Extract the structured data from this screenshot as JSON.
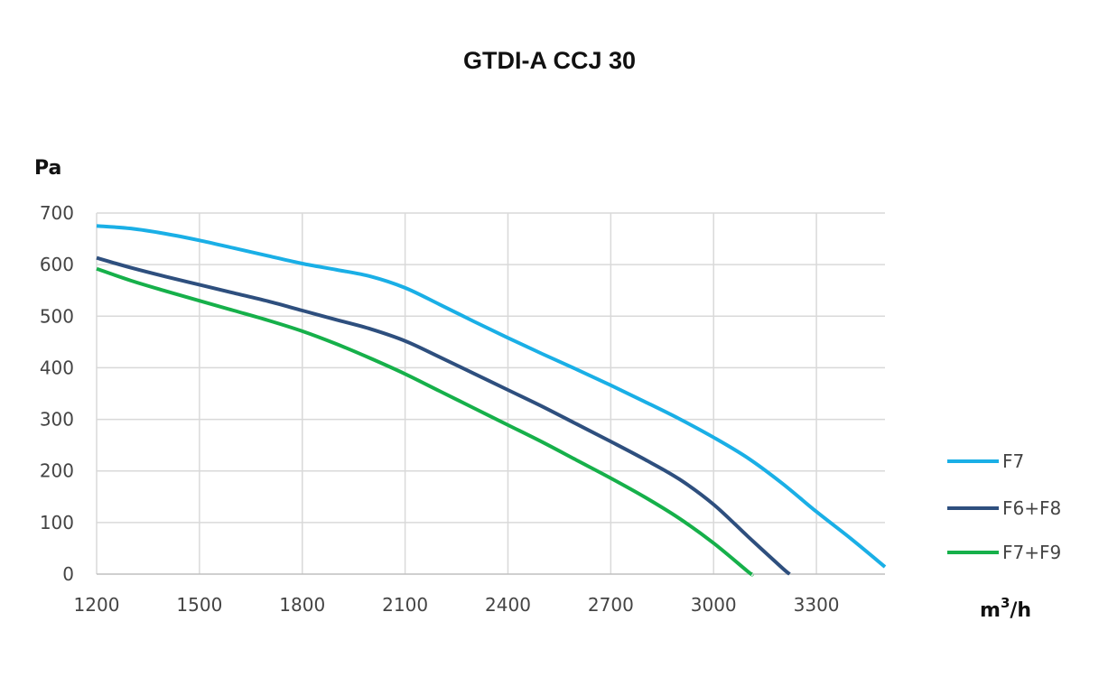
{
  "chart_data": {
    "type": "line",
    "title": "GTDI-A CCJ 30",
    "ylabel": "Pa",
    "xlabel_base": "m",
    "xlabel_sup": "3",
    "xlabel_tail": "/h",
    "xlim": [
      1200,
      3500
    ],
    "ylim": [
      0,
      700
    ],
    "x_ticks": [
      1200,
      1500,
      1800,
      2100,
      2400,
      2700,
      3000,
      3300
    ],
    "y_ticks": [
      0,
      100,
      200,
      300,
      400,
      500,
      600,
      700
    ],
    "grid": true,
    "legend_position": "right",
    "series": [
      {
        "name": "F7",
        "color": "#1aafe6",
        "x": [
          1200,
          1300,
          1400,
          1500,
          1600,
          1700,
          1800,
          1900,
          2000,
          2100,
          2200,
          2300,
          2400,
          2500,
          2600,
          2700,
          2800,
          2900,
          3000,
          3100,
          3200,
          3300,
          3400,
          3500
        ],
        "y": [
          675,
          670,
          660,
          647,
          632,
          617,
          602,
          590,
          577,
          555,
          523,
          490,
          458,
          427,
          397,
          366,
          334,
          301,
          265,
          225,
          176,
          121,
          69,
          14
        ]
      },
      {
        "name": "F6+F8",
        "color": "#2e4f7e",
        "x": [
          1200,
          1300,
          1400,
          1500,
          1600,
          1700,
          1800,
          1900,
          2000,
          2100,
          2200,
          2300,
          2400,
          2500,
          2600,
          2700,
          2800,
          2900,
          3000,
          3100,
          3200,
          3222
        ],
        "y": [
          613,
          594,
          577,
          561,
          545,
          529,
          511,
          493,
          475,
          452,
          421,
          389,
          357,
          325,
          291,
          257,
          222,
          184,
          135,
          73,
          12,
          0
        ]
      },
      {
        "name": "F7+F9",
        "color": "#16b04a",
        "x": [
          1200,
          1300,
          1400,
          1500,
          1600,
          1700,
          1800,
          1900,
          2000,
          2100,
          2200,
          2300,
          2400,
          2500,
          2600,
          2700,
          2800,
          2900,
          3000,
          3100,
          3112
        ],
        "y": [
          592,
          569,
          549,
          530,
          511,
          492,
          471,
          446,
          418,
          388,
          355,
          322,
          289,
          256,
          221,
          186,
          149,
          108,
          60,
          5,
          0
        ]
      }
    ]
  }
}
